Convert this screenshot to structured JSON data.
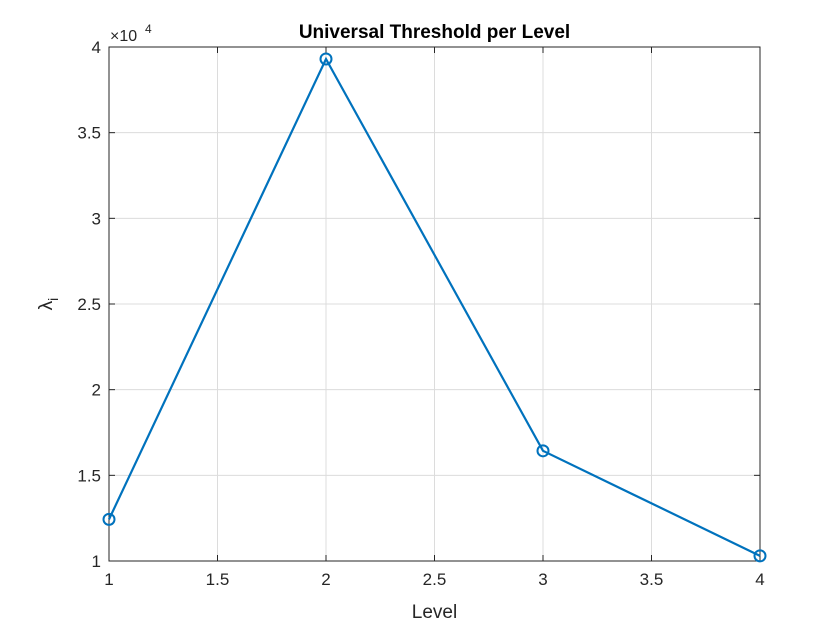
{
  "chart_data": {
    "type": "line",
    "title": "Universal Threshold per Level",
    "xlabel": "Level",
    "ylabel_main": "λ",
    "ylabel_sub": "i",
    "y_exponent_prefix": "×10",
    "y_exponent_power": "4",
    "xlim": [
      1,
      4
    ],
    "ylim": [
      1,
      4
    ],
    "x_ticks": [
      1,
      1.5,
      2,
      2.5,
      3,
      3.5,
      4
    ],
    "x_tick_labels": [
      "1",
      "1.5",
      "2",
      "2.5",
      "3",
      "3.5",
      "4"
    ],
    "y_ticks": [
      1,
      1.5,
      2,
      2.5,
      3,
      3.5,
      4
    ],
    "y_tick_labels": [
      "1",
      "1.5",
      "2",
      "2.5",
      "3",
      "3.5",
      "4"
    ],
    "grid": true,
    "series": [
      {
        "x": [
          1,
          2,
          3,
          4
        ],
        "y": [
          1.243,
          3.93,
          1.643,
          1.03
        ],
        "marker": "circle",
        "color": "#0072BD"
      }
    ]
  }
}
